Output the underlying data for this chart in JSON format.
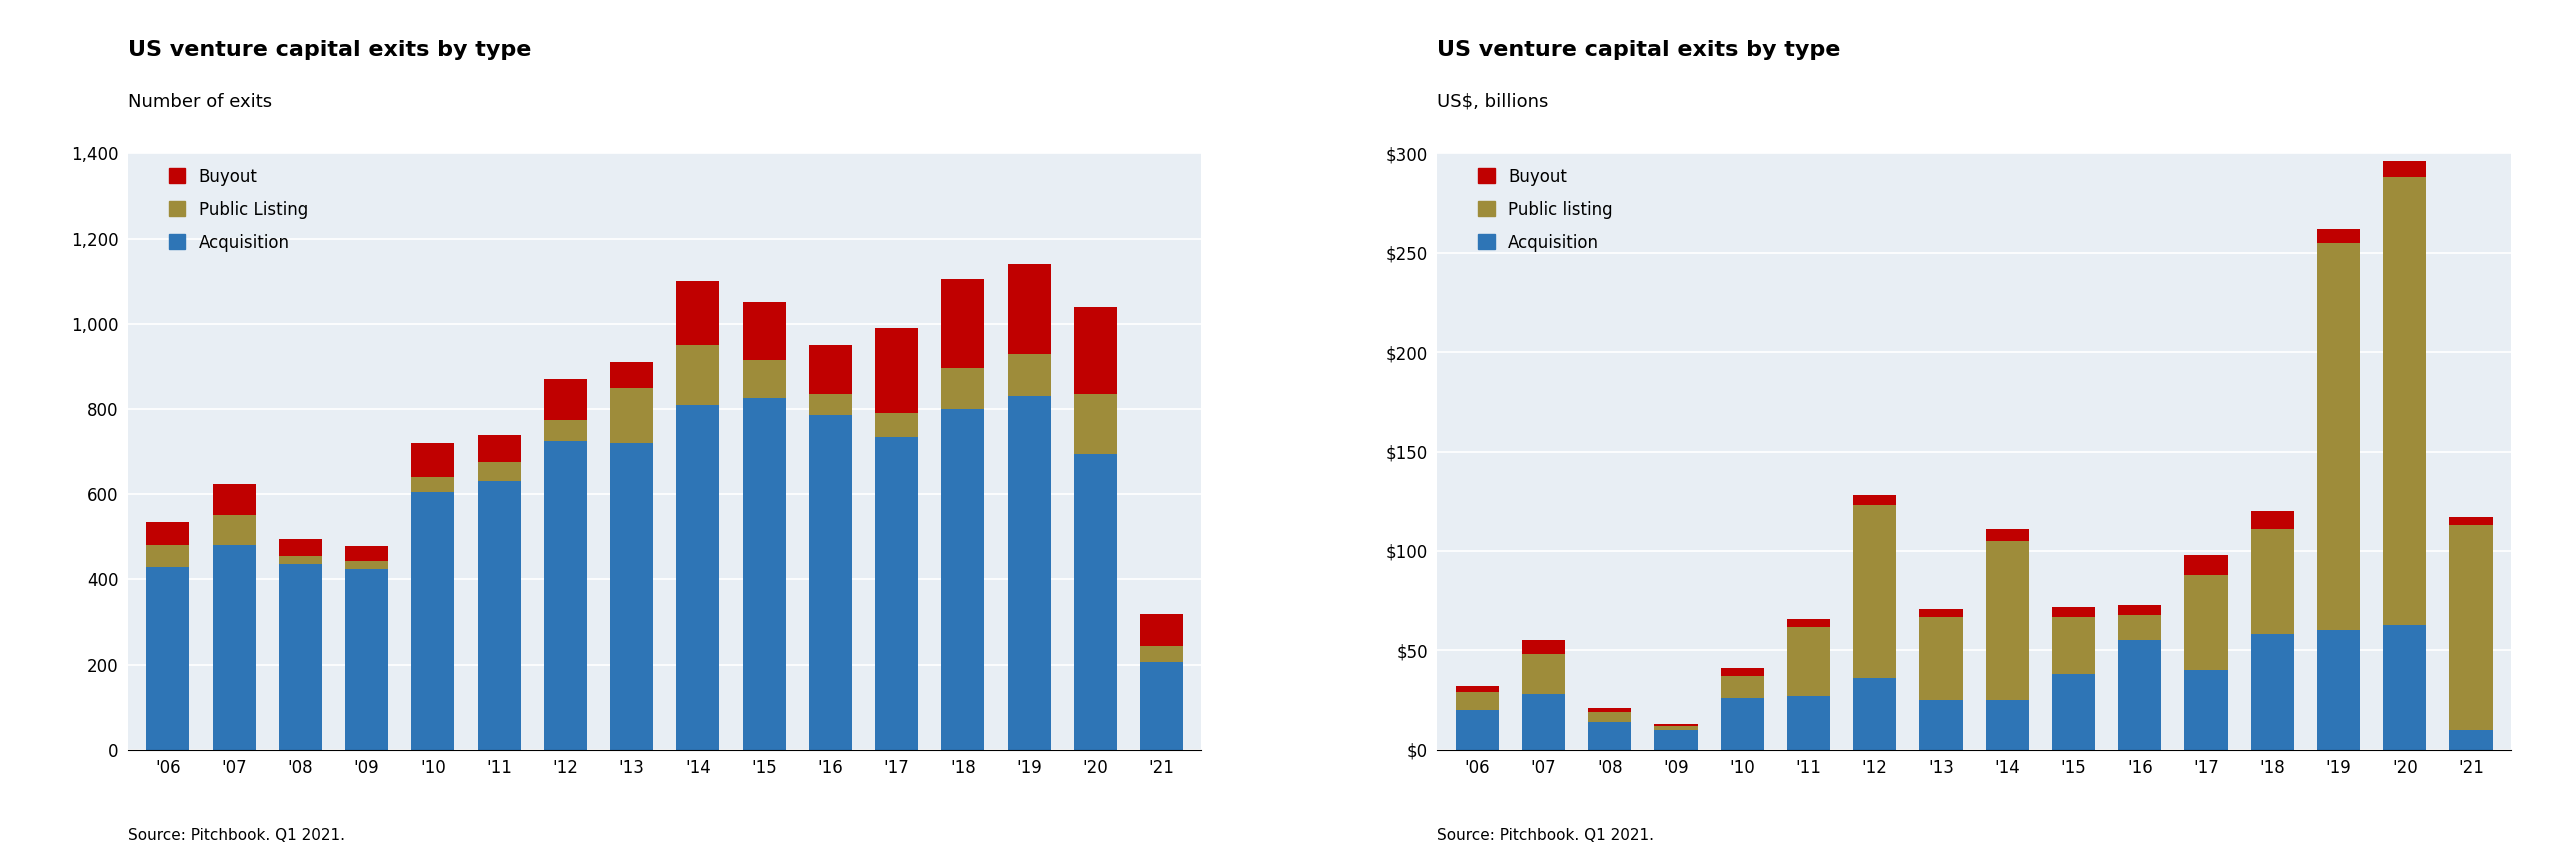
{
  "years": [
    "'06",
    "'07",
    "'08",
    "'09",
    "'10",
    "'11",
    "'12",
    "'13",
    "'14",
    "'15",
    "'16",
    "'17",
    "'18",
    "'19",
    "'20",
    "'21"
  ],
  "left_chart": {
    "title": "US venture capital exits by type",
    "subtitle": "Number of exits",
    "source": "Source: Pitchbook. Q1 2021.",
    "ylim": [
      0,
      1400
    ],
    "yticks": [
      0,
      200,
      400,
      600,
      800,
      1000,
      1200,
      1400
    ],
    "acquisition": [
      430,
      480,
      435,
      425,
      605,
      630,
      725,
      720,
      810,
      825,
      785,
      735,
      800,
      830,
      695,
      205
    ],
    "public_listing": [
      50,
      70,
      20,
      18,
      35,
      45,
      50,
      130,
      140,
      90,
      50,
      55,
      95,
      100,
      140,
      38
    ],
    "buyout": [
      55,
      75,
      40,
      35,
      80,
      65,
      95,
      60,
      150,
      135,
      115,
      200,
      210,
      210,
      205,
      75
    ],
    "colors": {
      "acquisition": "#2E75B6",
      "public_listing": "#9E8C3A",
      "buyout": "#C00000"
    }
  },
  "right_chart": {
    "title": "US venture capital exits by type",
    "subtitle": "US$, billions",
    "source": "Source: Pitchbook. Q1 2021.",
    "ylim": [
      0,
      300
    ],
    "yticks": [
      0,
      50,
      100,
      150,
      200,
      250,
      300
    ],
    "ytick_labels": [
      "$0",
      "$50",
      "$100",
      "$150",
      "$200",
      "$250",
      "$300"
    ],
    "acquisition": [
      20,
      28,
      14,
      10,
      26,
      27,
      36,
      25,
      25,
      38,
      55,
      40,
      58,
      60,
      63,
      10
    ],
    "public_listing": [
      9,
      20,
      5,
      2,
      11,
      35,
      87,
      42,
      80,
      29,
      13,
      48,
      53,
      195,
      225,
      103
    ],
    "buyout": [
      3,
      7,
      2,
      1,
      4,
      4,
      5,
      4,
      6,
      5,
      5,
      10,
      9,
      7,
      8,
      4
    ],
    "colors": {
      "acquisition": "#2E75B6",
      "public_listing": "#9E8C3A",
      "buyout": "#C00000"
    }
  },
  "background_color": "#E8EEF4",
  "fig_background": "#FFFFFF"
}
